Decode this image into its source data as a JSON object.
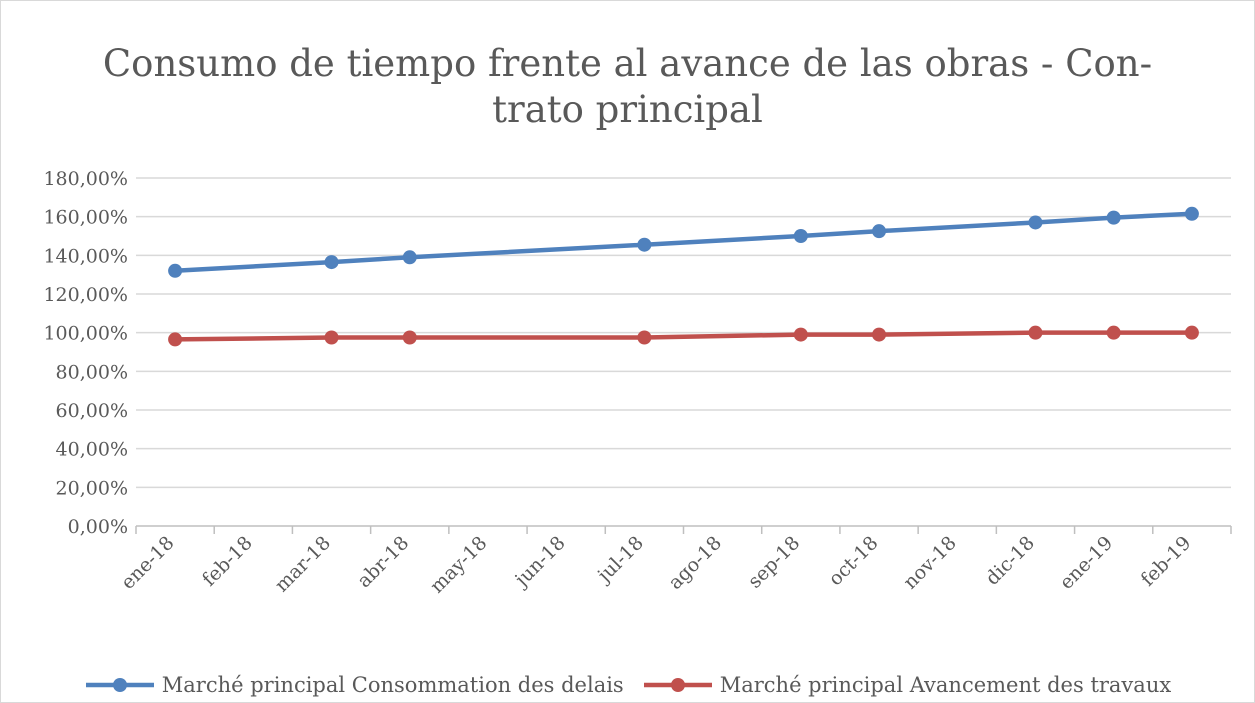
{
  "chart_data": {
    "type": "line",
    "title": "Consumo de tiempo frente al avance de las obras - Con- trato principal",
    "title_lines": [
      "Consumo de tiempo frente al avance de las obras - Con-",
      "trato principal"
    ],
    "categories": [
      "ene-18",
      "feb-18",
      "mar-18",
      "abr-18",
      "may-18",
      "jun-18",
      "jul-18",
      "ago-18",
      "sep-18",
      "oct-18",
      "nov-18",
      "dic-18",
      "ene-19",
      "feb-19"
    ],
    "y_ticks": [
      "0,00%",
      "20,00%",
      "40,00%",
      "60,00%",
      "80,00%",
      "100,00%",
      "120,00%",
      "140,00%",
      "160,00%",
      "180,00%"
    ],
    "ylim": [
      0,
      180
    ],
    "grid": true,
    "legend_position": "bottom",
    "series": [
      {
        "name": "Marché principal Consommation des delais",
        "color": "#4F81BD",
        "points": [
          {
            "x": "ene-18",
            "y": 132
          },
          {
            "x": "mar-18",
            "y": 136.5
          },
          {
            "x": "abr-18",
            "y": 139
          },
          {
            "x": "jul-18",
            "y": 145.5
          },
          {
            "x": "sep-18",
            "y": 150
          },
          {
            "x": "oct-18",
            "y": 152.5
          },
          {
            "x": "dic-18",
            "y": 157
          },
          {
            "x": "ene-19",
            "y": 159.5
          },
          {
            "x": "feb-19",
            "y": 161.5
          }
        ]
      },
      {
        "name": "Marché principal Avancement des travaux",
        "color": "#C0504D",
        "points": [
          {
            "x": "ene-18",
            "y": 96.5
          },
          {
            "x": "mar-18",
            "y": 97.5
          },
          {
            "x": "abr-18",
            "y": 97.5
          },
          {
            "x": "jul-18",
            "y": 97.5
          },
          {
            "x": "sep-18",
            "y": 99
          },
          {
            "x": "oct-18",
            "y": 99
          },
          {
            "x": "dic-18",
            "y": 100
          },
          {
            "x": "ene-19",
            "y": 100
          },
          {
            "x": "feb-19",
            "y": 100
          }
        ]
      }
    ]
  }
}
